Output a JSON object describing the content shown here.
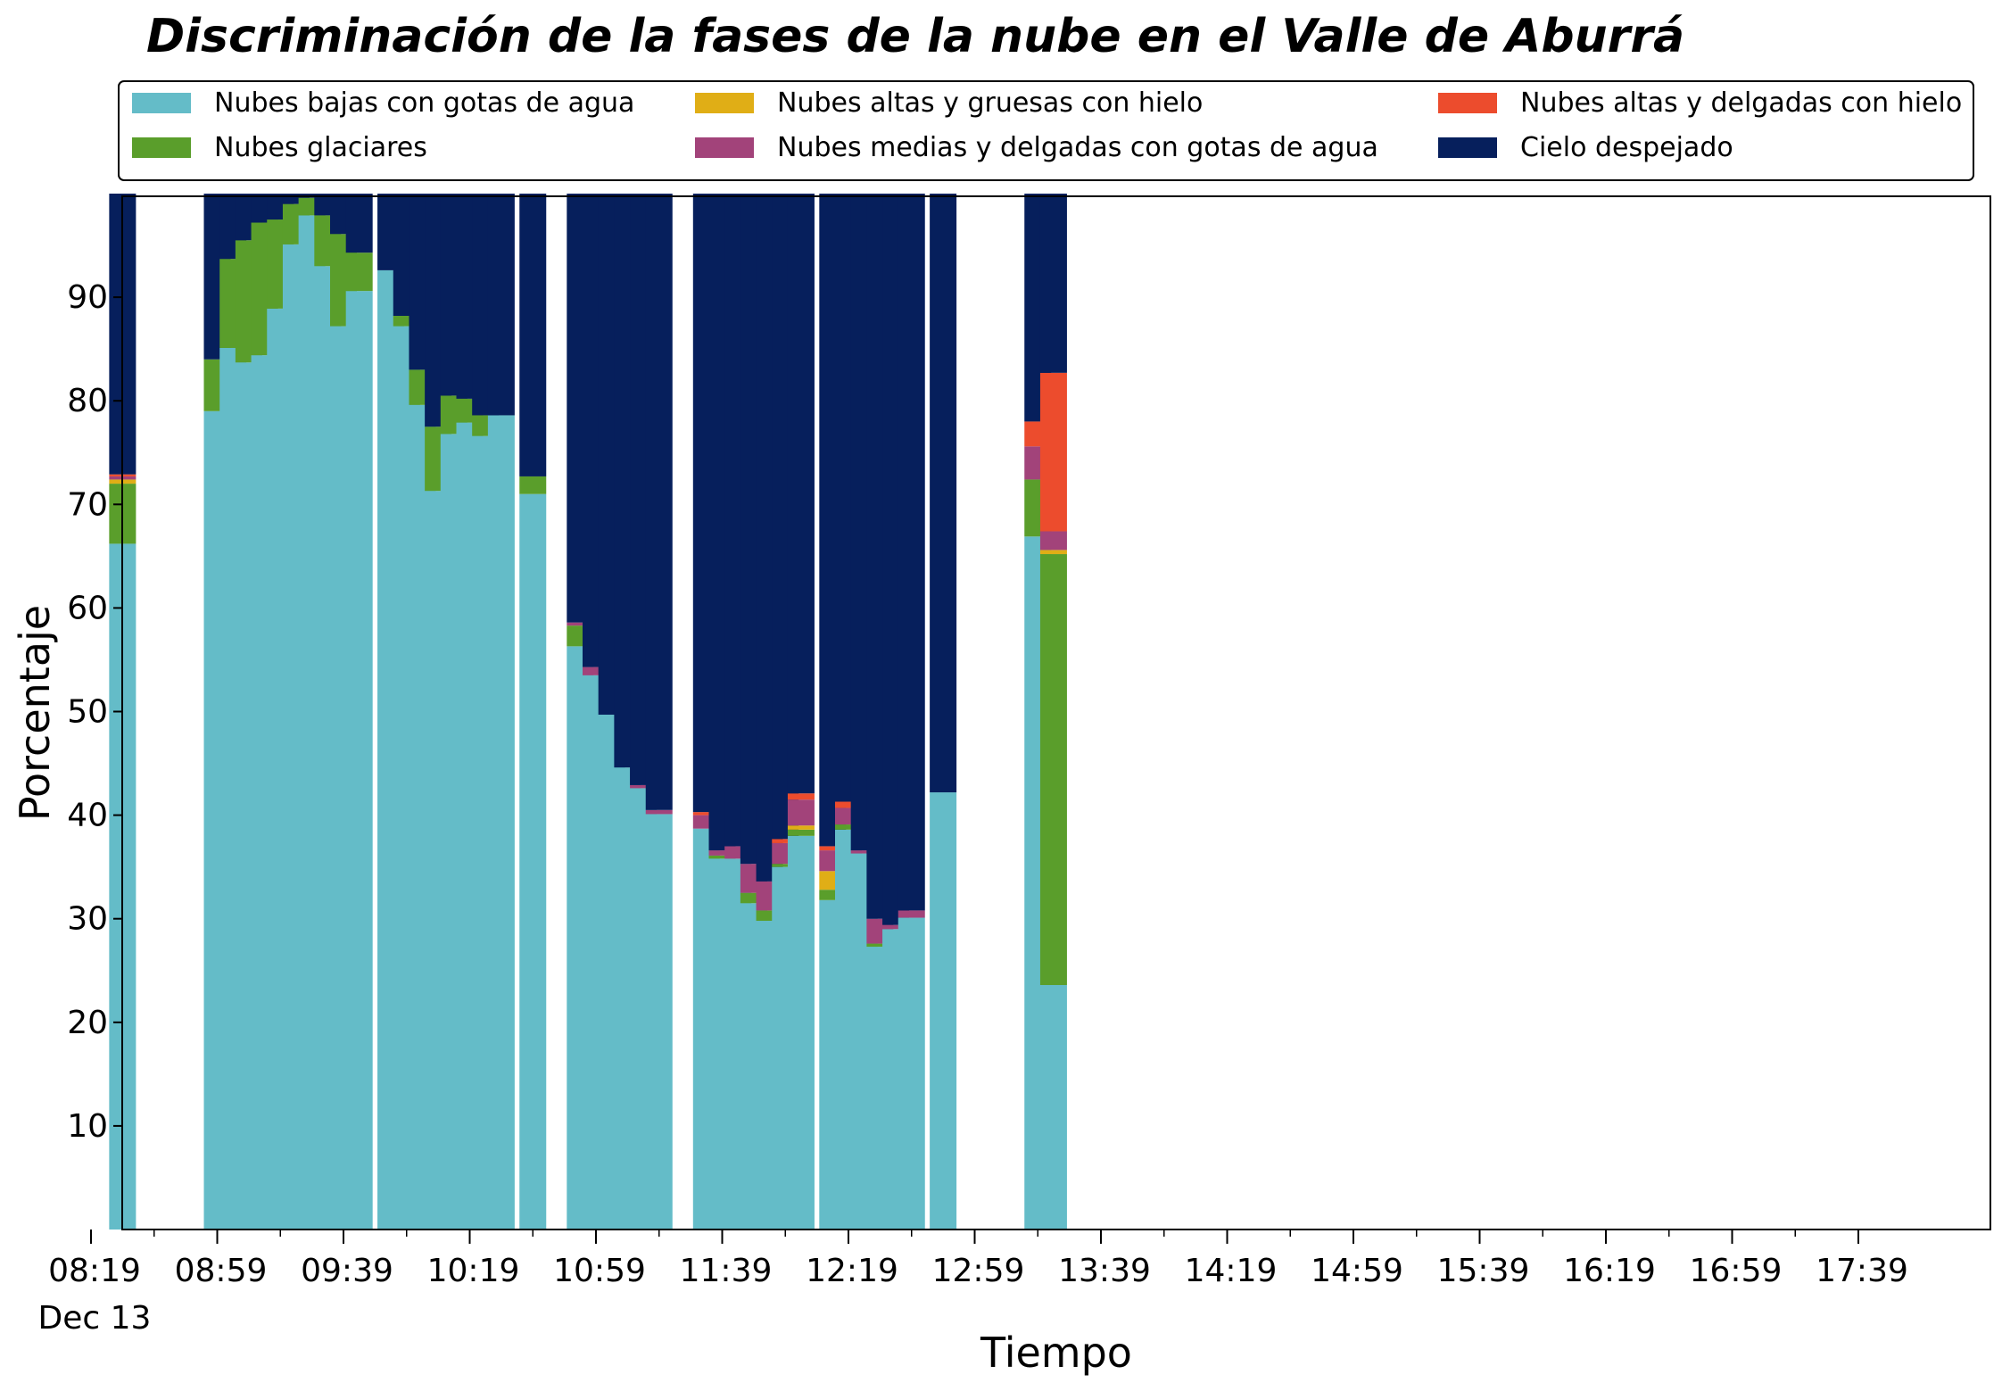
{
  "chart_data": {
    "type": "bar",
    "stacked": true,
    "title": "Discriminación de la fases de la nube en el Valle de Aburrá",
    "xlabel": "Tiempo",
    "ylabel": "Porcentaje",
    "ylim": [
      0,
      100
    ],
    "yticks": [
      10,
      20,
      30,
      40,
      50,
      60,
      70,
      80,
      90
    ],
    "xticks": [
      "08:19",
      "08:59",
      "09:39",
      "10:19",
      "10:59",
      "11:39",
      "12:19",
      "12:59",
      "13:39",
      "14:19",
      "14:59",
      "15:39",
      "16:19",
      "16:59",
      "17:39"
    ],
    "date_label": "Dec 13",
    "legend_position": "top",
    "grid": false,
    "series": [
      {
        "name": "Nubes bajas con gotas de agua",
        "color": "#64bcc8"
      },
      {
        "name": "Nubes glaciares",
        "color": "#5a9e2b"
      },
      {
        "name": "Nubes altas y gruesas con hielo",
        "color": "#e0ae16"
      },
      {
        "name": "Nubes medias y delgadas con gotas de agua",
        "color": "#a2437a"
      },
      {
        "name": "Nubes altas y delgadas con hielo",
        "color": "#ec4c2d"
      },
      {
        "name": "Cielo despejado",
        "color": "#061f5c"
      }
    ],
    "bars": [
      {
        "time": "08:29",
        "values": [
          66.2,
          5.8,
          0.4,
          0.3,
          0.2,
          27.1
        ]
      },
      {
        "time": "08:59",
        "values": [
          79,
          5,
          0,
          0,
          0,
          16
        ]
      },
      {
        "time": "09:04",
        "values": [
          85.1,
          8.6,
          0,
          0,
          0,
          6.3
        ]
      },
      {
        "time": "09:09",
        "values": [
          83.7,
          11.8,
          0,
          0,
          0,
          4.5
        ]
      },
      {
        "time": "09:14",
        "values": [
          84.4,
          12.8,
          0,
          0,
          0,
          2.8
        ]
      },
      {
        "time": "09:19",
        "values": [
          88.9,
          8.6,
          0,
          0,
          0,
          2.5
        ]
      },
      {
        "time": "09:24",
        "values": [
          95.1,
          3.9,
          0,
          0,
          0,
          1.0
        ]
      },
      {
        "time": "09:29",
        "values": [
          97.9,
          1.7,
          0,
          0,
          0,
          0.4
        ]
      },
      {
        "time": "09:34",
        "values": [
          93,
          4.9,
          0,
          0,
          0,
          2.1
        ]
      },
      {
        "time": "09:39",
        "values": [
          87.2,
          8.9,
          0,
          0,
          0,
          3.9
        ]
      },
      {
        "time": "09:44",
        "values": [
          90.6,
          3.7,
          0,
          0,
          0,
          5.7
        ]
      },
      {
        "time": "09:54",
        "values": [
          92.6,
          0,
          0,
          0,
          0,
          7.4
        ]
      },
      {
        "time": "09:59",
        "values": [
          87.2,
          1.0,
          0,
          0,
          0,
          11.8
        ]
      },
      {
        "time": "10:04",
        "values": [
          79.6,
          3.4,
          0,
          0,
          0,
          17.0
        ]
      },
      {
        "time": "10:09",
        "values": [
          71.3,
          6.2,
          0,
          0,
          0,
          22.5
        ]
      },
      {
        "time": "10:14",
        "values": [
          76.8,
          3.7,
          0,
          0,
          0,
          19.5
        ]
      },
      {
        "time": "10:19",
        "values": [
          77.9,
          2.3,
          0,
          0,
          0,
          19.8
        ]
      },
      {
        "time": "10:24",
        "values": [
          76.6,
          2.0,
          0,
          0,
          0,
          21.4
        ]
      },
      {
        "time": "10:29",
        "values": [
          78.6,
          0,
          0,
          0,
          0,
          21.4
        ]
      },
      {
        "time": "10:39",
        "values": [
          71.0,
          1.7,
          0,
          0,
          0,
          27.3
        ]
      },
      {
        "time": "10:54",
        "values": [
          56.3,
          2.0,
          0,
          0.3,
          0,
          41.4
        ]
      },
      {
        "time": "10:59",
        "values": [
          53.5,
          0,
          0,
          0.8,
          0,
          45.7
        ]
      },
      {
        "time": "11:04",
        "values": [
          49.7,
          0,
          0,
          0,
          0,
          50.3
        ]
      },
      {
        "time": "11:09",
        "values": [
          44.6,
          0,
          0,
          0,
          0,
          55.4
        ]
      },
      {
        "time": "11:14",
        "values": [
          42.6,
          0,
          0,
          0.3,
          0,
          57.1
        ]
      },
      {
        "time": "11:19",
        "values": [
          40.1,
          0,
          0,
          0.4,
          0,
          59.5
        ]
      },
      {
        "time": "11:34",
        "values": [
          38.7,
          0,
          0,
          1.3,
          0.3,
          59.7
        ]
      },
      {
        "time": "11:39",
        "values": [
          35.8,
          0.3,
          0,
          0.5,
          0,
          63.4
        ]
      },
      {
        "time": "11:44",
        "values": [
          35.8,
          0,
          0,
          1.2,
          0,
          63.0
        ]
      },
      {
        "time": "11:49",
        "values": [
          31.5,
          1.0,
          0,
          2.8,
          0,
          64.7
        ]
      },
      {
        "time": "11:54",
        "values": [
          29.8,
          1.0,
          0,
          2.8,
          0,
          66.4
        ]
      },
      {
        "time": "11:59",
        "values": [
          35.0,
          0.3,
          0,
          2.0,
          0.4,
          62.3
        ]
      },
      {
        "time": "12:04",
        "values": [
          38.0,
          0.6,
          0.4,
          2.5,
          0.6,
          57.9
        ]
      },
      {
        "time": "12:14",
        "values": [
          31.8,
          1.0,
          1.8,
          2.0,
          0.4,
          63.0
        ]
      },
      {
        "time": "12:19",
        "values": [
          38.6,
          0.5,
          0,
          1.6,
          0.6,
          58.7
        ]
      },
      {
        "time": "12:24",
        "values": [
          36.3,
          0,
          0,
          0.3,
          0,
          63.4
        ]
      },
      {
        "time": "12:29",
        "values": [
          27.3,
          0.3,
          0,
          2.4,
          0,
          70.0
        ]
      },
      {
        "time": "12:34",
        "values": [
          29.0,
          0,
          0,
          0.4,
          0,
          70.6
        ]
      },
      {
        "time": "12:39",
        "values": [
          30.1,
          0,
          0,
          0.7,
          0,
          69.2
        ]
      },
      {
        "time": "12:49",
        "values": [
          42.2,
          0,
          0,
          0,
          0,
          57.8
        ]
      },
      {
        "time": "13:19",
        "values": [
          66.9,
          5.5,
          0,
          3.2,
          2.4,
          22.0
        ]
      },
      {
        "time": "13:24",
        "values": [
          23.6,
          41.6,
          0.4,
          1.8,
          15.3,
          17.3
        ]
      }
    ]
  }
}
